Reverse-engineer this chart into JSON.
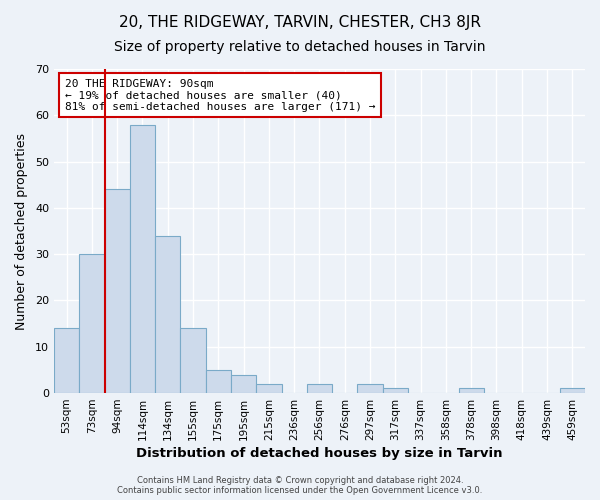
{
  "title": "20, THE RIDGEWAY, TARVIN, CHESTER, CH3 8JR",
  "subtitle": "Size of property relative to detached houses in Tarvin",
  "xlabel": "Distribution of detached houses by size in Tarvin",
  "ylabel": "Number of detached properties",
  "bin_labels": [
    "53sqm",
    "73sqm",
    "94sqm",
    "114sqm",
    "134sqm",
    "155sqm",
    "175sqm",
    "195sqm",
    "215sqm",
    "236sqm",
    "256sqm",
    "276sqm",
    "297sqm",
    "317sqm",
    "337sqm",
    "358sqm",
    "378sqm",
    "398sqm",
    "418sqm",
    "439sqm",
    "459sqm"
  ],
  "bar_values": [
    14,
    30,
    44,
    58,
    34,
    14,
    5,
    4,
    2,
    0,
    2,
    0,
    2,
    1,
    0,
    0,
    1,
    0,
    0,
    0,
    1
  ],
  "bar_color": "#cddaeb",
  "bar_edge_color": "#7aaac8",
  "vline_index": 2,
  "vline_color": "#cc0000",
  "ylim": [
    0,
    70
  ],
  "yticks": [
    0,
    10,
    20,
    30,
    40,
    50,
    60,
    70
  ],
  "annotation_box_text": "20 THE RIDGEWAY: 90sqm\n← 19% of detached houses are smaller (40)\n81% of semi-detached houses are larger (171) →",
  "annotation_box_color": "#cc0000",
  "annotation_box_bg": "#ffffff",
  "footer_line1": "Contains HM Land Registry data © Crown copyright and database right 2024.",
  "footer_line2": "Contains public sector information licensed under the Open Government Licence v3.0.",
  "title_fontsize": 11,
  "subtitle_fontsize": 10,
  "background_color": "#edf2f8"
}
